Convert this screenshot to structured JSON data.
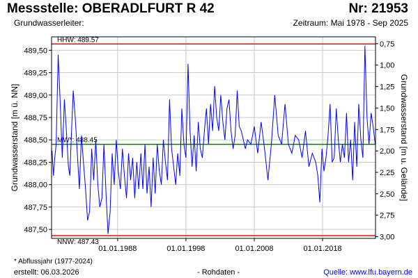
{
  "header": {
    "title_left": "Messstelle: OBERADLFURT R 42",
    "title_right": "Nr: 21953",
    "subtitle_left": "Grundwasserleiter:",
    "subtitle_right": "Zeitraum: Mai 1978 - Sep 2025"
  },
  "footer": {
    "footnote": "* Abflussjahr (1977-2024)",
    "created": "erstellt:  06.03.2026",
    "rohdaten": "- Rohdaten -",
    "source": "Quelle: www.lfu.bayern.de"
  },
  "colors": {
    "series": "#0000ff",
    "extreme_lines": "#ff0000",
    "mean_line": "#008000",
    "grid": "#c8c8c8"
  },
  "chart_data": {
    "type": "line",
    "ylabel": "Grundwasserstand [m ü. NN]",
    "y2label": "Grundwasserstand [m u. Gelände]",
    "xlim": [
      "1978-05-01",
      "2025-09-30"
    ],
    "ylim": [
      487.4,
      489.65
    ],
    "y2lim": [
      3.02,
      0.67
    ],
    "x_tick_labels": [
      "01.01.1988",
      "01.01.1998",
      "01.01.2008",
      "01.01.2018"
    ],
    "x_tick_values": [
      1988.0,
      1998.0,
      2008.0,
      2018.0
    ],
    "y_ticks": [
      487.5,
      487.75,
      488.0,
      488.25,
      488.5,
      488.75,
      489.0,
      489.25,
      489.5
    ],
    "y_tick_labels": [
      "487,50",
      "487,75",
      "488,00",
      "488,25",
      "488,50",
      "488,75",
      "489,00",
      "489,25",
      "489,50"
    ],
    "y2_ticks": [
      0.75,
      1.0,
      1.25,
      1.5,
      1.75,
      2.0,
      2.25,
      2.5,
      2.75,
      3.0
    ],
    "y2_tick_labels": [
      "0,75",
      "1,00",
      "1,25",
      "1,50",
      "1,75",
      "2,00",
      "2,25",
      "2,50",
      "2,75",
      "3,00"
    ],
    "grid": true,
    "reference_lines": [
      {
        "label": "HHW: 489.57",
        "value": 489.57,
        "color": "#ff0000"
      },
      {
        "label": "MW*: 488.45",
        "value": 488.45,
        "color": "#008000"
      },
      {
        "label": "NNW: 487.43",
        "value": 487.43,
        "color": "#ff0000"
      }
    ],
    "series": [
      {
        "x": [
          1978.4,
          1978.6,
          1978.8,
          1979.0,
          1979.3,
          1979.6,
          1979.9,
          1980.2,
          1980.5,
          1980.8,
          1981.0,
          1981.2,
          1981.5,
          1981.8,
          1982.1,
          1982.4,
          1982.7,
          1983.0,
          1983.3,
          1983.6,
          1983.9,
          1984.2,
          1984.5,
          1984.8,
          1985.1,
          1985.4,
          1985.7,
          1986.0,
          1986.3,
          1986.6,
          1986.9,
          1987.2,
          1987.5,
          1987.8,
          1988.1,
          1988.4,
          1988.7,
          1989.0,
          1989.3,
          1989.6,
          1989.9,
          1990.2,
          1990.5,
          1990.8,
          1991.1,
          1991.4,
          1991.7,
          1992.0,
          1992.3,
          1992.6,
          1992.9,
          1993.2,
          1993.5,
          1993.8,
          1994.1,
          1994.4,
          1994.7,
          1995.0,
          1995.3,
          1995.6,
          1995.9,
          1996.2,
          1996.5,
          1996.8,
          1997.1,
          1997.4,
          1997.7,
          1998.0,
          1998.3,
          1998.6,
          1998.9,
          1999.2,
          1999.5,
          1999.8,
          2000.1,
          2000.4,
          2000.7,
          2001.0,
          2001.3,
          2001.6,
          2001.9,
          2002.2,
          2002.5,
          2002.8,
          2003.1,
          2003.4,
          2003.7,
          2004.0,
          2004.3,
          2004.6,
          2004.9,
          2005.2,
          2005.5,
          2005.8,
          2006.1,
          2006.4,
          2006.7,
          2007.0,
          2007.5,
          2008.0,
          2008.5,
          2009.0,
          2009.5,
          2010.0,
          2010.5,
          2011.0,
          2011.5,
          2012.0,
          2012.5,
          2013.0,
          2013.5,
          2014.0,
          2014.5,
          2015.0,
          2015.5,
          2016.0,
          2016.5,
          2017.0,
          2017.3,
          2017.6,
          2017.9,
          2018.2,
          2018.5,
          2018.8,
          2019.1,
          2019.4,
          2019.7,
          2020.0,
          2020.3,
          2020.6,
          2020.9,
          2021.2,
          2021.5,
          2021.8,
          2022.1,
          2022.4,
          2022.7,
          2023.0,
          2023.3,
          2023.6,
          2023.9,
          2024.2,
          2024.5,
          2024.8,
          2025.1,
          2025.4,
          2025.7
        ],
        "values": [
          488.38,
          488.1,
          488.3,
          488.45,
          489.45,
          488.9,
          488.3,
          488.95,
          488.6,
          488.2,
          488.1,
          488.5,
          489.05,
          488.75,
          488.35,
          487.95,
          488.55,
          488.25,
          487.95,
          487.6,
          487.7,
          488.4,
          488.05,
          488.5,
          488.0,
          487.75,
          487.85,
          488.45,
          487.9,
          487.45,
          487.7,
          488.35,
          488.0,
          488.5,
          488.15,
          487.95,
          488.4,
          488.1,
          487.85,
          488.35,
          488.05,
          488.3,
          487.85,
          488.25,
          487.95,
          488.35,
          487.95,
          488.45,
          487.9,
          488.2,
          487.75,
          488.3,
          487.9,
          488.45,
          488.15,
          488.0,
          488.5,
          488.25,
          488.05,
          488.95,
          488.4,
          488.2,
          488.0,
          488.35,
          488.1,
          488.85,
          488.45,
          488.3,
          489.35,
          488.6,
          488.2,
          488.55,
          488.15,
          488.7,
          488.4,
          488.3,
          488.6,
          488.85,
          488.45,
          488.9,
          488.6,
          489.1,
          488.75,
          488.6,
          489.0,
          488.7,
          488.5,
          488.85,
          488.95,
          488.6,
          488.4,
          488.55,
          489.05,
          488.65,
          488.6,
          488.5,
          488.4,
          488.5,
          488.45,
          488.65,
          488.35,
          488.7,
          488.4,
          488.05,
          488.45,
          489.0,
          488.55,
          488.45,
          488.9,
          488.45,
          488.35,
          488.55,
          488.5,
          488.3,
          488.6,
          488.2,
          488.35,
          488.25,
          488.1,
          487.8,
          488.4,
          488.15,
          488.3,
          488.55,
          488.9,
          488.25,
          488.3,
          488.85,
          488.5,
          488.25,
          488.45,
          488.3,
          488.8,
          488.25,
          488.5,
          488.05,
          488.7,
          488.2,
          488.9,
          488.5,
          488.3,
          489.55,
          488.75,
          488.45,
          488.8,
          488.65,
          488.45
        ]
      }
    ]
  }
}
